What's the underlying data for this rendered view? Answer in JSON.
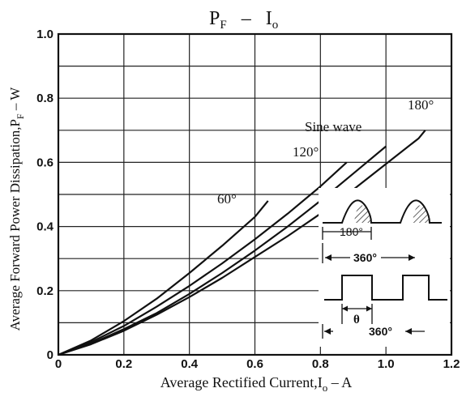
{
  "chart_data": {
    "type": "line",
    "title": {
      "main_p": "P",
      "main_p_sub": "F",
      "dash": "–",
      "main_i": "I",
      "main_i_sub": "o"
    },
    "xlabel": {
      "text": "Average Rectified Current,I",
      "sub": "o",
      "tail": " – A"
    },
    "ylabel": {
      "text": "Average Forward Power Dissipation,P",
      "sub": "F",
      "tail": " – W"
    },
    "xlim": [
      0,
      1.2
    ],
    "ylim": [
      0,
      1.0
    ],
    "xticks": [
      {
        "value": 0,
        "label": "0"
      },
      {
        "value": 0.2,
        "label": "0.2"
      },
      {
        "value": 0.4,
        "label": "0.4"
      },
      {
        "value": 0.6,
        "label": "0.6"
      },
      {
        "value": 0.8,
        "label": "0.8"
      },
      {
        "value": 1.0,
        "label": "1.0"
      },
      {
        "value": 1.2,
        "label": "1.2"
      }
    ],
    "yticks": [
      {
        "value": 0,
        "label": "0"
      },
      {
        "value": 0.2,
        "label": "0.2"
      },
      {
        "value": 0.4,
        "label": "0.4"
      },
      {
        "value": 0.6,
        "label": "0.6"
      },
      {
        "value": 0.8,
        "label": "0.8"
      },
      {
        "value": 1.0,
        "label": "1.0"
      }
    ],
    "grid": true,
    "series": [
      {
        "name": "60°",
        "x": [
          0,
          0.1,
          0.2,
          0.3,
          0.4,
          0.5,
          0.6,
          0.64
        ],
        "y": [
          0,
          0.045,
          0.105,
          0.175,
          0.255,
          0.34,
          0.43,
          0.48
        ]
      },
      {
        "name": "120°",
        "x": [
          0,
          0.1,
          0.2,
          0.3,
          0.4,
          0.5,
          0.6,
          0.7,
          0.8,
          0.88
        ],
        "y": [
          0,
          0.04,
          0.09,
          0.15,
          0.215,
          0.285,
          0.36,
          0.44,
          0.525,
          0.6
        ]
      },
      {
        "name": "Sine wave",
        "x": [
          0,
          0.1,
          0.2,
          0.3,
          0.4,
          0.5,
          0.6,
          0.7,
          0.8,
          0.9,
          1.0
        ],
        "y": [
          0,
          0.035,
          0.08,
          0.13,
          0.19,
          0.255,
          0.325,
          0.4,
          0.48,
          0.565,
          0.65
        ]
      },
      {
        "name": "180°",
        "x": [
          0,
          0.1,
          0.2,
          0.3,
          0.4,
          0.5,
          0.6,
          0.7,
          0.8,
          0.9,
          1.0,
          1.1,
          1.12
        ],
        "y": [
          0,
          0.033,
          0.075,
          0.125,
          0.18,
          0.24,
          0.305,
          0.37,
          0.44,
          0.515,
          0.595,
          0.675,
          0.7
        ]
      }
    ],
    "annotations": {
      "label_60": "60°",
      "label_120": "120°",
      "label_sine": "Sine wave",
      "label_180": "180°",
      "inset_180": "180°",
      "inset_360_top": "360°",
      "inset_theta": "θ",
      "inset_360_bottom": "360°"
    }
  }
}
